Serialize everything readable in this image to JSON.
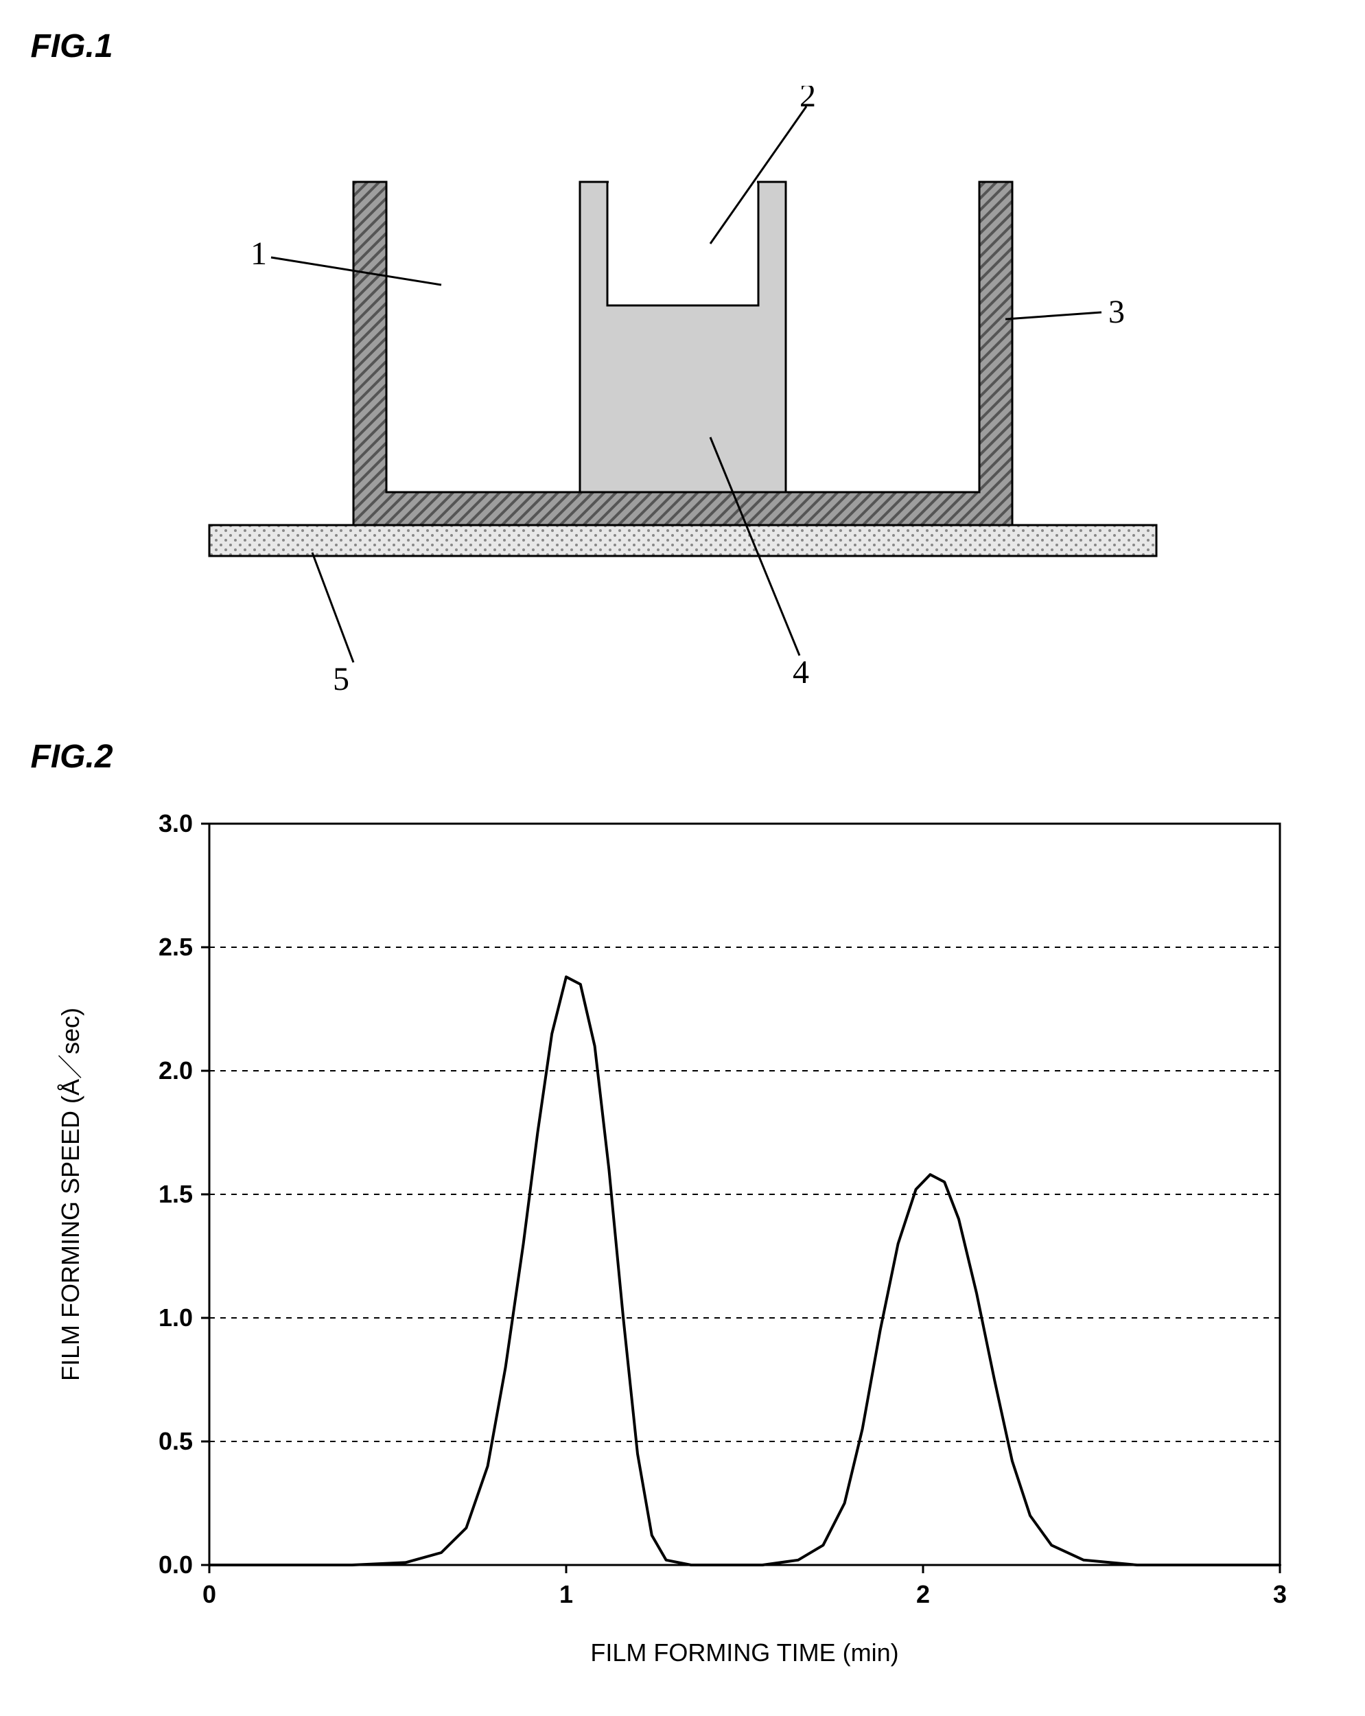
{
  "fig1": {
    "label": "FIG.1",
    "callouts": [
      {
        "id": 1,
        "text": "1"
      },
      {
        "id": 2,
        "text": "2"
      },
      {
        "id": 3,
        "text": "3"
      },
      {
        "id": 4,
        "text": "4"
      },
      {
        "id": 5,
        "text": "5"
      }
    ],
    "colors": {
      "outer_wall_fill": "#9e9e9e",
      "outer_wall_hatch": "#555555",
      "inner_block_fill": "#cfcfcf",
      "inner_cavity_fill": "#ffffff",
      "plate_fill": "#e8e8e8",
      "plate_dots": "#888888",
      "stroke": "#000000"
    },
    "leader_stroke_width": 3,
    "callout_fontsize": 48
  },
  "fig2": {
    "label": "FIG.2",
    "xlabel": "FILM FORMING TIME  (min)",
    "ylabel": "FILM FORMING SPEED  (Å／sec)",
    "xlim": [
      0,
      3
    ],
    "ylim": [
      0.0,
      3.0
    ],
    "xticks": [
      0,
      1,
      2,
      3
    ],
    "yticks": [
      0.0,
      0.5,
      1.0,
      1.5,
      2.0,
      2.5,
      3.0
    ],
    "ytick_labels": [
      "0.0",
      "0.5",
      "1.0",
      "1.5",
      "2.0",
      "2.5",
      "3.0"
    ],
    "grid_color": "#000000",
    "grid_dash": "8,8",
    "axis_color": "#000000",
    "background": "#ffffff",
    "line_color": "#000000",
    "line_width": 4,
    "label_fontsize": 36,
    "tick_fontsize": 36,
    "series": [
      {
        "points": [
          [
            0.0,
            0.0
          ],
          [
            0.4,
            0.0
          ],
          [
            0.55,
            0.01
          ],
          [
            0.65,
            0.05
          ],
          [
            0.72,
            0.15
          ],
          [
            0.78,
            0.4
          ],
          [
            0.83,
            0.8
          ],
          [
            0.88,
            1.3
          ],
          [
            0.92,
            1.75
          ],
          [
            0.96,
            2.15
          ],
          [
            1.0,
            2.38
          ],
          [
            1.04,
            2.35
          ],
          [
            1.08,
            2.1
          ],
          [
            1.12,
            1.6
          ],
          [
            1.16,
            1.0
          ],
          [
            1.2,
            0.45
          ],
          [
            1.24,
            0.12
          ],
          [
            1.28,
            0.02
          ],
          [
            1.35,
            0.0
          ],
          [
            1.55,
            0.0
          ],
          [
            1.65,
            0.02
          ],
          [
            1.72,
            0.08
          ],
          [
            1.78,
            0.25
          ],
          [
            1.83,
            0.55
          ],
          [
            1.88,
            0.95
          ],
          [
            1.93,
            1.3
          ],
          [
            1.98,
            1.52
          ],
          [
            2.02,
            1.58
          ],
          [
            2.06,
            1.55
          ],
          [
            2.1,
            1.4
          ],
          [
            2.15,
            1.1
          ],
          [
            2.2,
            0.75
          ],
          [
            2.25,
            0.42
          ],
          [
            2.3,
            0.2
          ],
          [
            2.36,
            0.08
          ],
          [
            2.45,
            0.02
          ],
          [
            2.6,
            0.0
          ],
          [
            3.0,
            0.0
          ]
        ]
      }
    ]
  }
}
